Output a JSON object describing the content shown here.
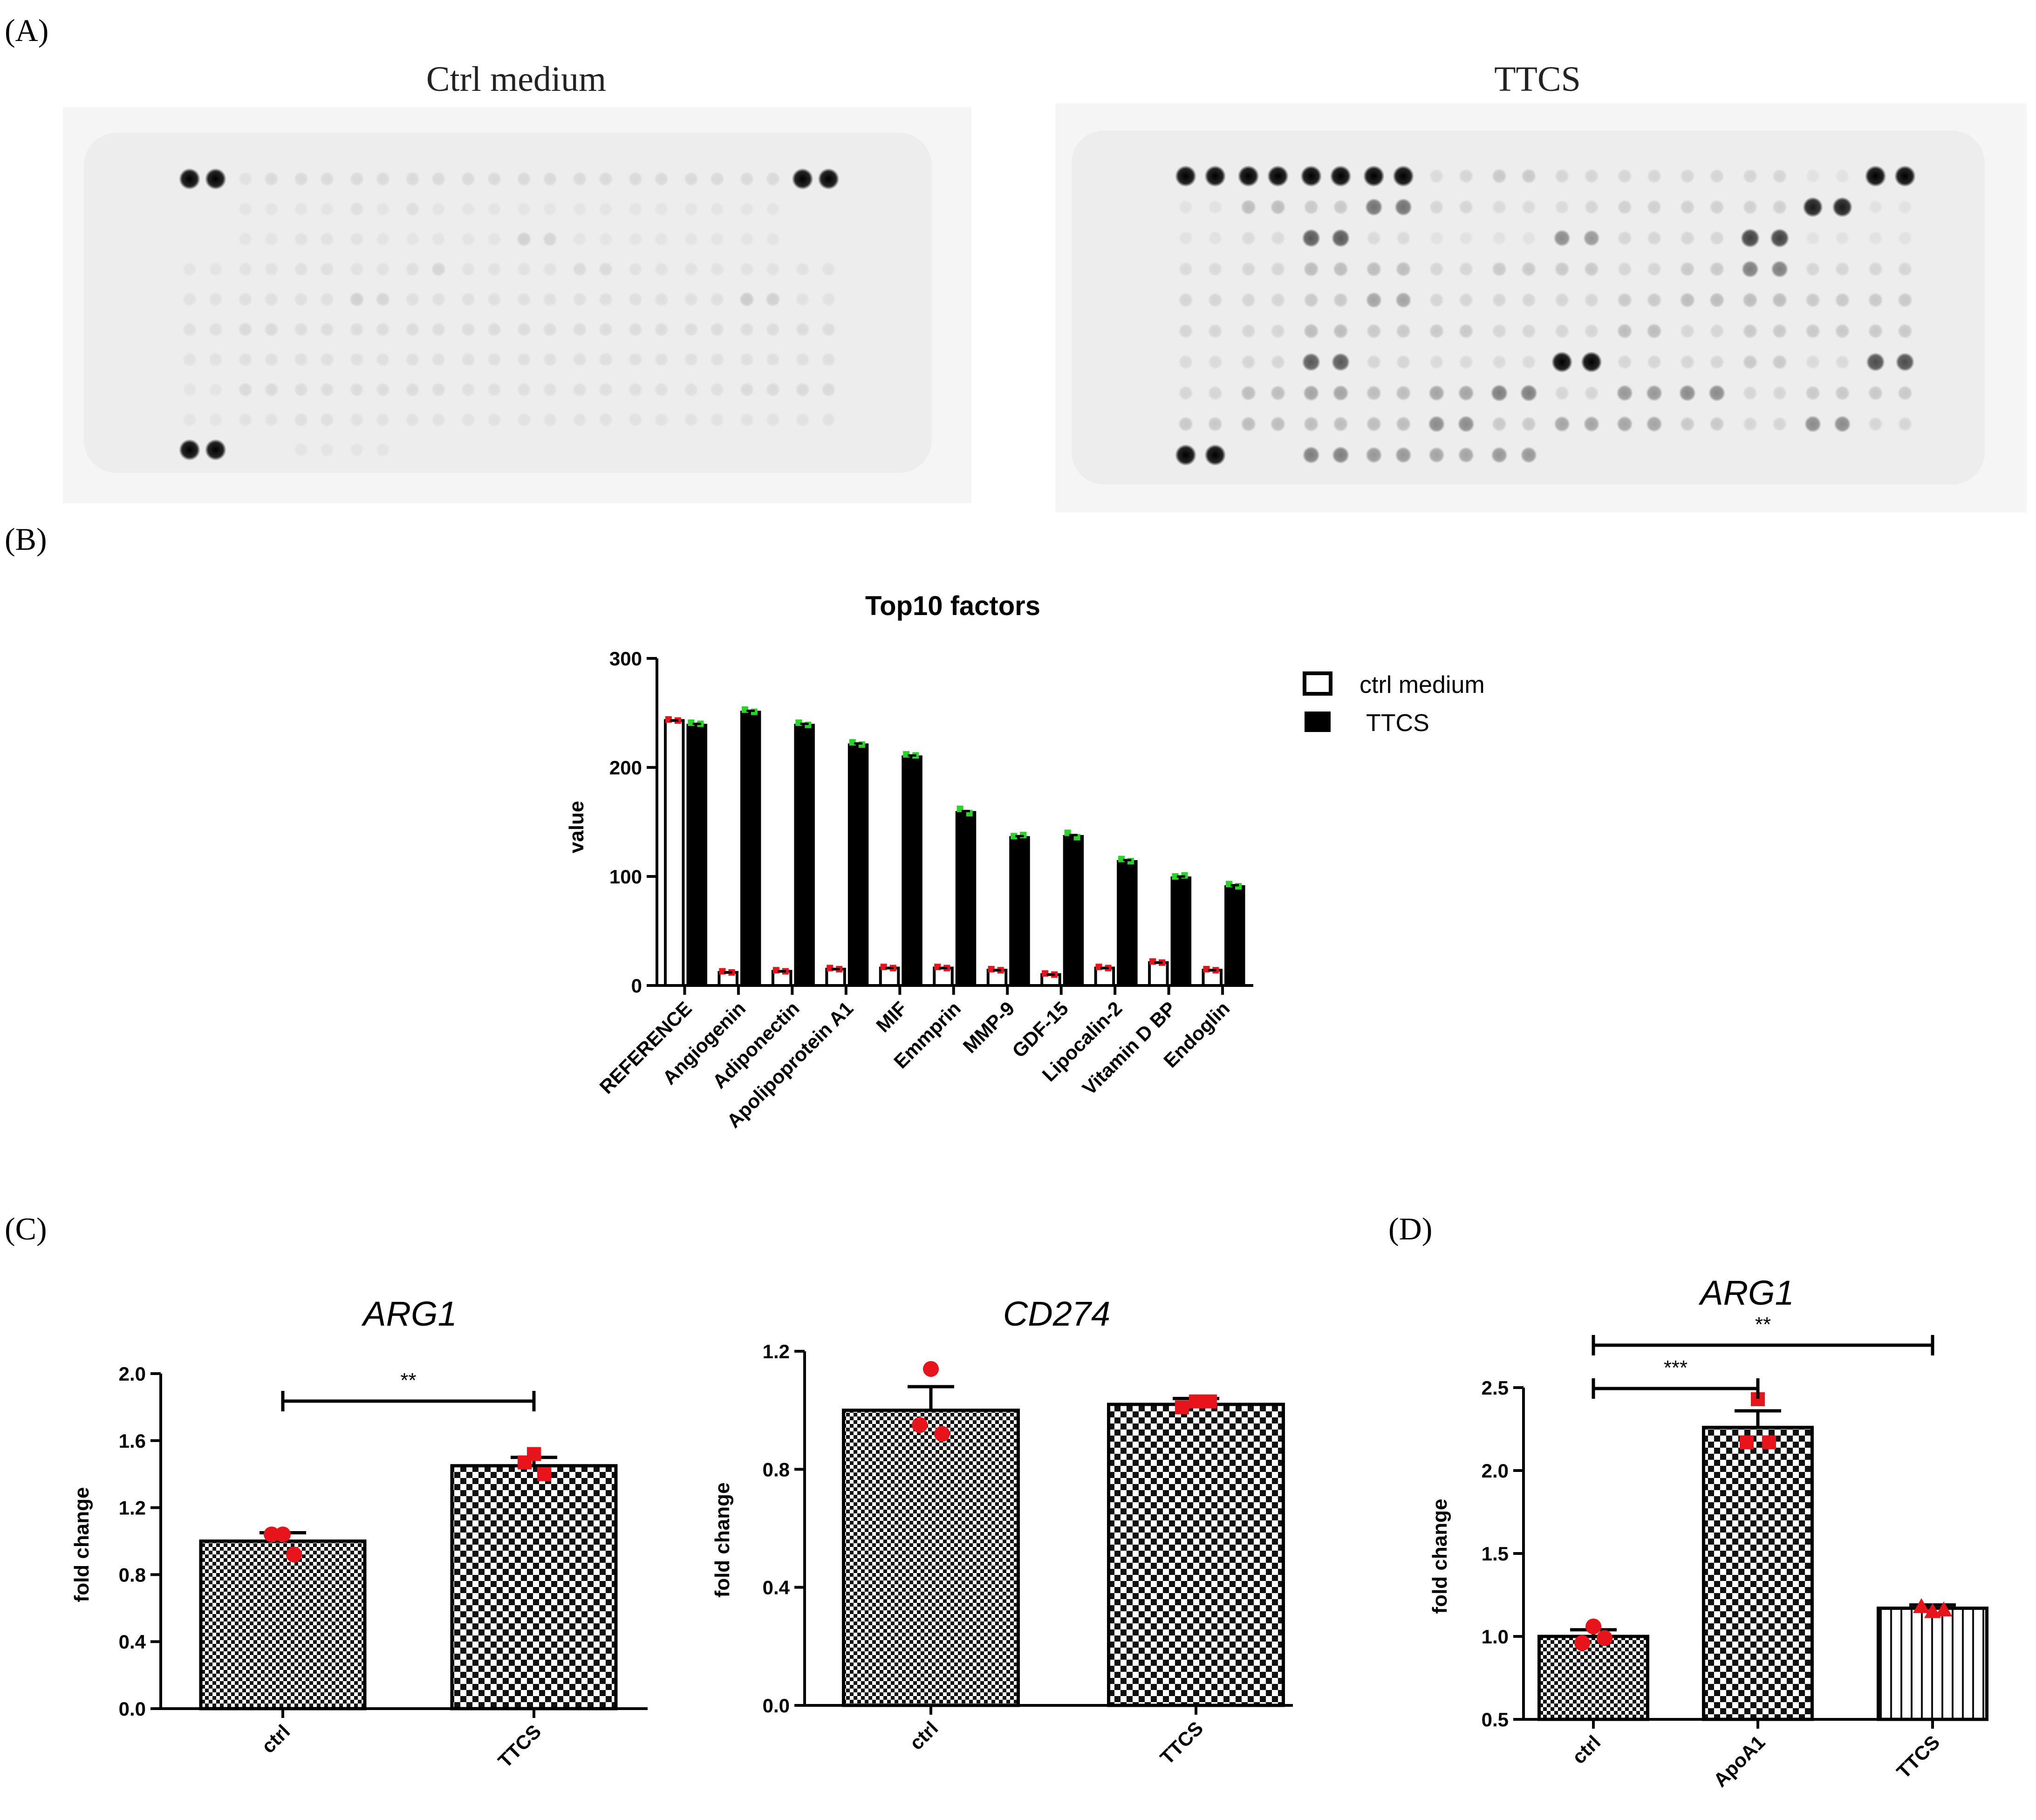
{
  "panels": {
    "A": {
      "label": "(A)",
      "blots": [
        {
          "title": "Ctrl medium",
          "rows": 10,
          "cols": 24,
          "spot_intensity": [
            [
              1,
              1,
              0.05,
              0.08,
              0.08,
              0.08,
              0.08,
              0.08,
              0.08,
              0.08,
              0.08,
              0.08,
              0.08,
              0.08,
              0.08,
              0.08,
              0.08,
              0.08,
              0.08,
              0.08,
              0.08,
              0.08,
              1,
              1
            ],
            [
              0,
              0,
              0.04,
              0.04,
              0.04,
              0.04,
              0.06,
              0.04,
              0.06,
              0.04,
              0.04,
              0.04,
              0.04,
              0.04,
              0.04,
              0.04,
              0.04,
              0.04,
              0.04,
              0.04,
              0.04,
              0.04,
              0,
              0
            ],
            [
              0,
              0,
              0.04,
              0.04,
              0.05,
              0.05,
              0.05,
              0.04,
              0.04,
              0.04,
              0.04,
              0.04,
              0.12,
              0.1,
              0.04,
              0.04,
              0.04,
              0.04,
              0.04,
              0.04,
              0.04,
              0.04,
              0,
              0
            ],
            [
              0.04,
              0.04,
              0.05,
              0.05,
              0.06,
              0.06,
              0.05,
              0.05,
              0.06,
              0.1,
              0.05,
              0.05,
              0.05,
              0.05,
              0.08,
              0.08,
              0.05,
              0.05,
              0.05,
              0.05,
              0.05,
              0.05,
              0.05,
              0.05
            ],
            [
              0.05,
              0.05,
              0.06,
              0.06,
              0.06,
              0.06,
              0.12,
              0.1,
              0.06,
              0.06,
              0.06,
              0.06,
              0.06,
              0.06,
              0.06,
              0.06,
              0.06,
              0.06,
              0.06,
              0.06,
              0.14,
              0.12,
              0.05,
              0.05
            ],
            [
              0.06,
              0.06,
              0.08,
              0.08,
              0.07,
              0.07,
              0.07,
              0.07,
              0.07,
              0.07,
              0.07,
              0.07,
              0.07,
              0.07,
              0.07,
              0.07,
              0.07,
              0.07,
              0.07,
              0.07,
              0.07,
              0.07,
              0.07,
              0.07
            ],
            [
              0.05,
              0.05,
              0.06,
              0.06,
              0.06,
              0.06,
              0.06,
              0.06,
              0.06,
              0.06,
              0.06,
              0.06,
              0.06,
              0.06,
              0.06,
              0.06,
              0.06,
              0.06,
              0.06,
              0.06,
              0.06,
              0.06,
              0.06,
              0.06
            ],
            [
              0.04,
              0.04,
              0.08,
              0.08,
              0.07,
              0.07,
              0.07,
              0.07,
              0.07,
              0.07,
              0.06,
              0.06,
              0.06,
              0.06,
              0.06,
              0.06,
              0.06,
              0.06,
              0.06,
              0.06,
              0.08,
              0.08,
              0.08,
              0.08
            ],
            [
              0.04,
              0.04,
              0.05,
              0.05,
              0.06,
              0.06,
              0.05,
              0.05,
              0.05,
              0.05,
              0.05,
              0.05,
              0.05,
              0.05,
              0.05,
              0.05,
              0.05,
              0.05,
              0.05,
              0.05,
              0.05,
              0.05,
              0.05,
              0.05
            ],
            [
              1,
              1,
              0,
              0,
              0.04,
              0.04,
              0.04,
              0.04,
              0,
              0,
              0,
              0,
              0,
              0,
              0,
              0,
              0,
              0,
              0,
              0,
              0,
              0,
              0,
              0
            ]
          ]
        },
        {
          "title": "TTCS",
          "rows": 10,
          "cols": 24,
          "spot_intensity": [
            [
              1,
              1,
              1,
              1,
              1,
              1,
              1,
              1,
              0.08,
              0.1,
              0.15,
              0.15,
              0.1,
              0.1,
              0.1,
              0.1,
              0.1,
              0.1,
              0.1,
              0.1,
              0.05,
              0.05,
              1,
              1
            ],
            [
              0.05,
              0.05,
              0.2,
              0.2,
              0.15,
              0.15,
              0.5,
              0.5,
              0.1,
              0.1,
              0.08,
              0.08,
              0.08,
              0.1,
              0.12,
              0.12,
              0.12,
              0.12,
              0.12,
              0.12,
              0.85,
              0.85,
              0.05,
              0.05
            ],
            [
              0.05,
              0.05,
              0.08,
              0.08,
              0.6,
              0.6,
              0.08,
              0.08,
              0.05,
              0.05,
              0.05,
              0.05,
              0.4,
              0.35,
              0.1,
              0.1,
              0.1,
              0.1,
              0.7,
              0.7,
              0.05,
              0.05,
              0.05,
              0.05
            ],
            [
              0.08,
              0.08,
              0.1,
              0.1,
              0.2,
              0.2,
              0.2,
              0.2,
              0.1,
              0.1,
              0.15,
              0.15,
              0.15,
              0.15,
              0.1,
              0.1,
              0.15,
              0.15,
              0.45,
              0.45,
              0.1,
              0.1,
              0.1,
              0.1
            ],
            [
              0.1,
              0.1,
              0.1,
              0.1,
              0.15,
              0.15,
              0.3,
              0.3,
              0.1,
              0.1,
              0.1,
              0.1,
              0.1,
              0.1,
              0.15,
              0.15,
              0.2,
              0.2,
              0.2,
              0.2,
              0.15,
              0.15,
              0.15,
              0.15
            ],
            [
              0.1,
              0.1,
              0.1,
              0.1,
              0.2,
              0.2,
              0.15,
              0.15,
              0.15,
              0.15,
              0.1,
              0.1,
              0.1,
              0.1,
              0.2,
              0.2,
              0.1,
              0.1,
              0.15,
              0.15,
              0.15,
              0.15,
              0.15,
              0.15
            ],
            [
              0.08,
              0.08,
              0.1,
              0.1,
              0.6,
              0.6,
              0.1,
              0.1,
              0.08,
              0.08,
              0.08,
              0.08,
              0.95,
              0.95,
              0.1,
              0.1,
              0.1,
              0.1,
              0.15,
              0.15,
              0.08,
              0.08,
              0.65,
              0.65
            ],
            [
              0.1,
              0.1,
              0.2,
              0.2,
              0.3,
              0.3,
              0.2,
              0.2,
              0.3,
              0.3,
              0.45,
              0.45,
              0.1,
              0.1,
              0.35,
              0.35,
              0.4,
              0.4,
              0.1,
              0.1,
              0.15,
              0.15,
              0.15,
              0.15
            ],
            [
              0.15,
              0.15,
              0.2,
              0.2,
              0.2,
              0.2,
              0.2,
              0.2,
              0.4,
              0.4,
              0.15,
              0.15,
              0.3,
              0.3,
              0.3,
              0.3,
              0.15,
              0.15,
              0.1,
              0.1,
              0.4,
              0.4,
              0.1,
              0.1
            ],
            [
              1,
              1,
              0,
              0,
              0.45,
              0.45,
              0.35,
              0.35,
              0.3,
              0.3,
              0.35,
              0.35,
              0,
              0,
              0,
              0,
              0,
              0,
              0,
              0,
              0,
              0,
              0,
              0
            ]
          ]
        }
      ]
    },
    "B": {
      "label": "(B)"
    },
    "C": {
      "label": "(C)"
    },
    "D": {
      "label": "(D)"
    }
  },
  "colors": {
    "ctrl_dots": "#e8141b",
    "ttcs_dots": "#29d329",
    "bar": "#000000",
    "frame": "#000000"
  },
  "chart_data": [
    {
      "id": "top10",
      "type": "bar",
      "title": "Top10 factors",
      "ylabel": "value",
      "xlabel": "",
      "ylim": [
        0,
        300
      ],
      "yticks": [
        0,
        100,
        200,
        300
      ],
      "categories": [
        "REFERENCE",
        "Angiogenin",
        "Adiponectin",
        "Apolipoprotein A1",
        "MIF",
        "Emmprin",
        "MMP-9",
        "GDF-15",
        "Lipocalin-2",
        "Vitamin D BP",
        "Endoglin"
      ],
      "series": [
        {
          "name": "ctrl medium",
          "fill": "white",
          "values": [
            243,
            12,
            13,
            15,
            16,
            16,
            14,
            10,
            16,
            21,
            14
          ],
          "points": [
            [
              244,
              243
            ],
            [
              13,
              12
            ],
            [
              14,
              13
            ],
            [
              16,
              15
            ],
            [
              17,
              16
            ],
            [
              17,
              16
            ],
            [
              15,
              14
            ],
            [
              11,
              10
            ],
            [
              17,
              16
            ],
            [
              22,
              21
            ],
            [
              15,
              14
            ]
          ]
        },
        {
          "name": "TTCS",
          "fill": "black",
          "values": [
            240,
            252,
            240,
            222,
            211,
            160,
            137,
            138,
            115,
            100,
            92
          ],
          "points": [
            [
              241,
              240
            ],
            [
              253,
              251
            ],
            [
              241,
              239
            ],
            [
              223,
              221
            ],
            [
              212,
              211
            ],
            [
              162,
              158
            ],
            [
              137,
              138
            ],
            [
              140,
              136
            ],
            [
              116,
              114
            ],
            [
              100,
              101
            ],
            [
              93,
              91
            ]
          ]
        }
      ],
      "legend": {
        "position": "top-right",
        "entries": [
          "ctrl medium",
          "TTCS"
        ]
      }
    },
    {
      "id": "C_ARG1",
      "type": "bar",
      "title": "ARG1",
      "ylabel": "fold change",
      "categories": [
        "ctrl",
        "TTCS"
      ],
      "values": [
        1.0,
        1.45
      ],
      "errors": [
        0.05,
        0.05
      ],
      "points": [
        [
          1.04,
          1.04,
          0.92
        ],
        [
          1.52,
          1.47,
          1.4
        ]
      ],
      "markers": [
        "circle",
        "square"
      ],
      "ylim": [
        0,
        2.0
      ],
      "yticks": [
        "0.0",
        "0.4",
        "0.8",
        "1.2",
        "1.6",
        "2.0"
      ],
      "significance": [
        {
          "from": 0,
          "to": 1,
          "label": "**"
        }
      ]
    },
    {
      "id": "C_CD274",
      "type": "bar",
      "title": "CD274",
      "ylabel": "fold change",
      "categories": [
        "ctrl",
        "TTCS"
      ],
      "values": [
        1.0,
        1.02
      ],
      "errors": [
        0.08,
        0.02
      ],
      "points": [
        [
          1.14,
          0.95,
          0.92
        ],
        [
          1.01,
          1.03,
          1.03
        ]
      ],
      "markers": [
        "circle",
        "square"
      ],
      "ylim": [
        0,
        1.2
      ],
      "yticks": [
        "0.0",
        "0.4",
        "0.8",
        "1.2"
      ],
      "significance": []
    },
    {
      "id": "D_ARG1",
      "type": "bar",
      "title": "ARG1",
      "ylabel": "fold change",
      "categories": [
        "ctrl",
        "ApoA1",
        "TTCS"
      ],
      "values": [
        1.0,
        2.26,
        1.17
      ],
      "errors": [
        0.04,
        0.1,
        0.02
      ],
      "points": [
        [
          1.06,
          0.96,
          0.99
        ],
        [
          2.43,
          2.17,
          2.17
        ],
        [
          1.15,
          1.18,
          1.16
        ]
      ],
      "markers": [
        "circle",
        "square",
        "triangle"
      ],
      "ylim": [
        0.5,
        2.5
      ],
      "yticks": [
        "0.5",
        "1.0",
        "1.5",
        "2.0",
        "2.5"
      ],
      "significance": [
        {
          "from": 0,
          "to": 1,
          "label": "***"
        },
        {
          "from": 0,
          "to": 2,
          "label": "**"
        }
      ]
    }
  ]
}
